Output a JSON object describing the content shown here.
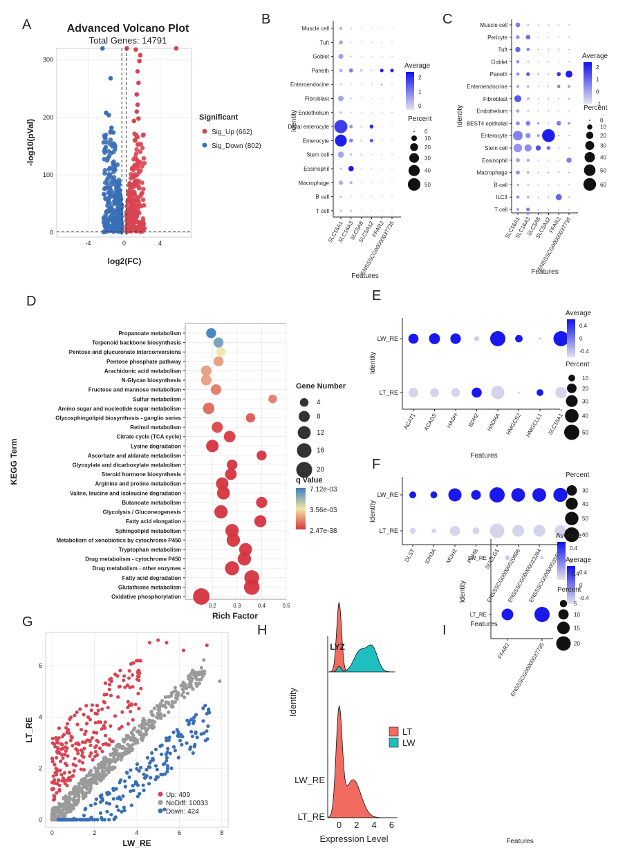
{
  "panel_labels": [
    "A",
    "B",
    "C",
    "D",
    "E",
    "F",
    "G",
    "H",
    "I"
  ],
  "colors": {
    "up": "#d94452",
    "down": "#3a6fb7",
    "nodiff": "#9a9a9a",
    "dot_low": "#d9d9d9",
    "dot_high": "#1010ee",
    "lt": "#f26b61",
    "lw": "#1fbfbf"
  },
  "chart_data": [
    {
      "id": "A",
      "type": "scatter",
      "title": "Advanced Volcano Plot",
      "subtitle": "Total Genes: 14791",
      "xlabel": "log2(FC)",
      "ylabel": "-log10(pVal)",
      "xlim": [
        -7.5,
        7.5
      ],
      "ylim": [
        -8,
        320
      ],
      "xticks": [
        -4,
        0,
        4
      ],
      "yticks": [
        0,
        100,
        200,
        300
      ],
      "threshold_x": [
        -0.25,
        0.25
      ],
      "threshold_y": 1.3,
      "legend_title": "Significant",
      "series": [
        {
          "name": "Sig_Up (662)",
          "color": "#d94452",
          "count": 662
        },
        {
          "name": "Sig_Down (802)",
          "color": "#3a6fb7",
          "count": 802
        }
      ],
      "outliers": [
        [
          -2.4,
          320
        ],
        [
          0.3,
          320
        ],
        [
          1.3,
          318
        ],
        [
          1.8,
          308
        ],
        [
          1.7,
          298
        ],
        [
          1.5,
          280
        ],
        [
          1.6,
          260
        ],
        [
          1.4,
          240
        ],
        [
          1.5,
          222
        ],
        [
          1.4,
          210
        ],
        [
          1.6,
          198
        ],
        [
          -1.5,
          268
        ],
        [
          -2.0,
          208
        ],
        [
          -1.7,
          204
        ],
        [
          -1.4,
          182
        ],
        [
          -1.2,
          174
        ],
        [
          -1.0,
          150
        ],
        [
          1.1,
          194
        ],
        [
          5.8,
          320
        ]
      ]
    },
    {
      "id": "B",
      "type": "dotplot",
      "xlabel": "Features",
      "ylabel": "Identity",
      "features": [
        "SLC16A1",
        "SLC16A3",
        "SLC5A8",
        "SLC5A12",
        "FFAR2",
        "ENSSSCG00000037735"
      ],
      "identities": [
        "Muscle cell",
        "Tuft",
        "Goblet",
        "Paneth",
        "Enteroendocine",
        "Fibroblast",
        "Endothelium",
        "Distal enterocyte",
        "Enterocyte",
        "Stem cell",
        "Eosinophil",
        "Macrophage",
        "B cell",
        "T cell"
      ],
      "percent": [
        [
          3,
          1,
          0,
          0,
          0,
          0
        ],
        [
          5,
          0,
          0,
          0,
          0,
          0
        ],
        [
          8,
          1,
          0,
          0,
          0,
          0
        ],
        [
          4,
          5,
          2,
          1,
          4,
          4
        ],
        [
          1,
          0,
          0,
          0,
          1,
          0
        ],
        [
          10,
          1,
          0,
          0,
          0,
          0
        ],
        [
          2,
          0,
          0,
          0,
          0,
          0
        ],
        [
          55,
          4,
          1,
          5,
          0,
          0
        ],
        [
          45,
          5,
          1,
          4,
          0,
          0
        ],
        [
          12,
          2,
          1,
          0,
          0,
          0
        ],
        [
          2,
          9,
          0,
          0,
          0,
          0
        ],
        [
          6,
          3,
          0,
          0,
          0,
          0
        ],
        [
          2,
          0,
          0,
          0,
          0,
          0
        ],
        [
          2,
          1,
          0,
          0,
          0,
          0
        ]
      ],
      "average": [
        [
          0.3,
          0,
          0,
          0,
          0,
          0
        ],
        [
          0.4,
          0,
          0,
          0,
          0,
          0
        ],
        [
          0.5,
          0,
          0,
          0,
          0,
          0
        ],
        [
          0.3,
          1.0,
          0,
          0,
          2.2,
          2.2
        ],
        [
          0,
          0,
          0,
          0,
          0.5,
          0
        ],
        [
          0.4,
          0,
          0,
          0,
          0,
          0
        ],
        [
          0,
          0,
          0,
          0,
          0,
          0
        ],
        [
          1.8,
          0.6,
          0,
          2.0,
          0,
          0
        ],
        [
          2.2,
          0.8,
          0,
          1.5,
          0,
          0
        ],
        [
          0.4,
          0,
          0,
          0,
          0,
          0
        ],
        [
          0,
          2.3,
          0,
          0,
          0,
          0
        ],
        [
          0.3,
          0.2,
          0,
          0,
          0,
          0
        ],
        [
          0,
          0,
          0,
          0,
          0,
          0
        ],
        [
          0,
          0.2,
          0,
          0,
          0,
          0
        ]
      ],
      "avg_range": [
        -0.3,
        2.4
      ],
      "avg_ticks": [
        2,
        1,
        0
      ],
      "avg_legend": "Average",
      "pct_legend": "Percent",
      "pct_ticks": [
        0,
        10,
        20,
        30,
        40,
        50
      ],
      "pct_max": 55
    },
    {
      "id": "C",
      "type": "dotplot",
      "xlabel": "Features",
      "ylabel": "Identity",
      "features": [
        "SLC16A1",
        "SLC16A3",
        "SLC5A8",
        "SLC5A12",
        "FFAR2",
        "ENSSSCG00000037735"
      ],
      "identities": [
        "Muscle cell",
        "Pericyte",
        "Tuft",
        "Goblet",
        "Paneth",
        "Enteroendocrine",
        "Fibroblast",
        "Endothelium",
        "BEST4 epithelial",
        "Enterocyte",
        "Stem cell",
        "Eosinophil",
        "Macrophage",
        "B cell",
        "ILC3",
        "T cell"
      ],
      "percent": [
        [
          8,
          1,
          0,
          0,
          0,
          0
        ],
        [
          5,
          8,
          0,
          0,
          0,
          0
        ],
        [
          10,
          4,
          0,
          0,
          0,
          0
        ],
        [
          4,
          1,
          0,
          0,
          0,
          0
        ],
        [
          4,
          5,
          1,
          0,
          6,
          18
        ],
        [
          3,
          2,
          0,
          0,
          4,
          3
        ],
        [
          18,
          2,
          0,
          0,
          0,
          1
        ],
        [
          4,
          1,
          0,
          0,
          0,
          0
        ],
        [
          6,
          8,
          2,
          0,
          8,
          3
        ],
        [
          35,
          10,
          3,
          62,
          1,
          0
        ],
        [
          28,
          20,
          10,
          6,
          0,
          0
        ],
        [
          6,
          3,
          0,
          0,
          0,
          10
        ],
        [
          6,
          2,
          0,
          0,
          0,
          0
        ],
        [
          2,
          1,
          0,
          0,
          0,
          0
        ],
        [
          4,
          2,
          0,
          0,
          14,
          0
        ],
        [
          3,
          5,
          0,
          0,
          0,
          0
        ]
      ],
      "average": [
        [
          0.6,
          0,
          0,
          0,
          0,
          0
        ],
        [
          0.3,
          0.8,
          0,
          0,
          0,
          0
        ],
        [
          1.0,
          0.5,
          0,
          0,
          0,
          0
        ],
        [
          0.3,
          0,
          0,
          0,
          0,
          0
        ],
        [
          0.3,
          1.3,
          0,
          0,
          1.8,
          2.2
        ],
        [
          0,
          0,
          0,
          0,
          0.5,
          0
        ],
        [
          1.2,
          0,
          0,
          0,
          0,
          0
        ],
        [
          0,
          0,
          0,
          0,
          0,
          0
        ],
        [
          0.3,
          0.6,
          0,
          0,
          0.6,
          0
        ],
        [
          0.5,
          0.3,
          0,
          2.2,
          0,
          0
        ],
        [
          0.2,
          0.3,
          1.4,
          0.7,
          0,
          0
        ],
        [
          0,
          0,
          0,
          0,
          0,
          0.6
        ],
        [
          0.3,
          0,
          0,
          0,
          0,
          0
        ],
        [
          0,
          0,
          0,
          0,
          0,
          0
        ],
        [
          0.2,
          0,
          0,
          0,
          1.0,
          0
        ],
        [
          0,
          0.6,
          0,
          0,
          0,
          0
        ]
      ],
      "avg_range": [
        -1,
        2.4
      ],
      "avg_ticks": [
        2,
        1,
        0,
        -1
      ],
      "avg_legend": "Average",
      "pct_legend": "Percent",
      "pct_ticks": [
        0,
        10,
        20,
        30,
        40,
        50,
        60
      ],
      "pct_max": 62
    },
    {
      "id": "D",
      "type": "scatter",
      "xlabel": "Rich Factor",
      "ylabel": "KEGG Term",
      "xlim": [
        0.09,
        0.5
      ],
      "xticks": [
        0.2,
        0.3,
        0.4,
        0.5
      ],
      "size_legend": "Gene Number",
      "size_ticks": [
        4,
        8,
        12,
        16,
        20
      ],
      "color_legend": "q Value",
      "color_labels": [
        "7.12e-03",
        "3.56e-03",
        "2.47e-38"
      ],
      "terms": [
        "Propanoate metabolism",
        "Terpenoid backbone biosynthesis",
        "Pentose and glucuronate interconversions",
        "Pentose phosphate pathway",
        "Arachidonic acid metabolism",
        "N-Glycan biosynthesis",
        "Fructose and mannose metabolism",
        "Sulfur metabolism",
        "Amino sugar and nucleotide sugar metabolism",
        "Glycosphingolipid biosynthesis - ganglio series",
        "Retinol metabolism",
        "Citrate cycle (TCA cycle)",
        "Lysine degradation",
        "Ascorbate and aldarate metabolism",
        "Glyoxylate and dicarboxylate metabolism",
        "Steroid hormone biosynthesis",
        "Arginine and proline metabolism",
        "Valine, leucine and isoleucine degradation",
        "Butanoate metabolism",
        "Glycolysis / Gluconeogenesis",
        "Fatty acid elongation",
        "Sphingolipid metabolism",
        "Metabolism of xenobiotics by cytochrome P450",
        "Tryptophan metabolism",
        "Drug metabolism - cytochrome P450",
        "Drug metabolism - other enzymes",
        "Fatty acid degradation",
        "Glutathione metabolism",
        "Oxidative phosphorylation"
      ],
      "rich_factor": [
        0.195,
        0.225,
        0.235,
        0.225,
        0.175,
        0.175,
        0.215,
        0.445,
        0.185,
        0.355,
        0.22,
        0.27,
        0.2,
        0.4,
        0.28,
        0.275,
        0.24,
        0.245,
        0.4,
        0.235,
        0.395,
        0.28,
        0.285,
        0.335,
        0.33,
        0.28,
        0.36,
        0.36,
        0.155
      ],
      "gene_number": [
        6,
        6,
        5,
        6,
        7,
        7,
        7,
        4,
        9,
        5,
        8,
        9,
        11,
        6,
        7,
        9,
        11,
        12,
        8,
        13,
        10,
        13,
        13,
        12,
        13,
        15,
        17,
        19,
        22
      ],
      "q_value_position": [
        1,
        0.85,
        0.5,
        0.3,
        0.3,
        0.3,
        0.2,
        0.2,
        0.15,
        0.1,
        0.05,
        0.02,
        0,
        0,
        0,
        0,
        0,
        0,
        0,
        0,
        0,
        0,
        0,
        0,
        0,
        0,
        0,
        0,
        0
      ]
    },
    {
      "id": "E",
      "type": "dotplot",
      "xlabel": "Features",
      "ylabel": "Identity",
      "features": [
        "ACAT1",
        "ACADS",
        "HADH",
        "BDH2",
        "HADHA",
        "HMGCS2",
        "HMGCLL1",
        "SLC16A1"
      ],
      "identities": [
        "LW_RE",
        "LT_RE"
      ],
      "percent": [
        [
          22,
          26,
          24,
          5,
          50,
          12,
          0,
          50
        ],
        [
          20,
          17,
          17,
          22,
          38,
          1,
          10,
          28
        ]
      ],
      "average": [
        [
          0.55,
          0.55,
          0.55,
          -0.5,
          0.55,
          0.55,
          0,
          0.55
        ],
        [
          -0.55,
          -0.55,
          -0.55,
          0.55,
          -0.55,
          -0.55,
          0.55,
          -0.55
        ]
      ],
      "avg_range": [
        -0.6,
        0.6
      ],
      "avg_ticks": [
        0.4,
        0.0,
        -0.4
      ],
      "avg_legend": "Average",
      "pct_legend": "Percent",
      "pct_ticks": [
        10,
        20,
        30,
        40,
        50
      ],
      "pct_max": 50
    },
    {
      "id": "F",
      "type": "dotplot",
      "xlabel": "Features",
      "ylabel": "Identity",
      "features": [
        "DLST",
        "IDH3A",
        "MDH2",
        "PDHB",
        "SUCLG1",
        "ENSSSCG00000020686",
        "ENSSSCG00000023264",
        "ENSSSCG00000035686"
      ],
      "identities": [
        "LW_RE",
        "LT_RE"
      ],
      "percent": [
        [
          13,
          13,
          48,
          26,
          64,
          52,
          52,
          54
        ],
        [
          10,
          6,
          28,
          13,
          58,
          38,
          38,
          36
        ]
      ],
      "average": [
        [
          0.55,
          0.55,
          0.55,
          0.55,
          0.55,
          0.55,
          0.55,
          0.55
        ],
        [
          -0.55,
          -0.55,
          -0.55,
          -0.55,
          -0.55,
          -0.55,
          -0.55,
          -0.55
        ]
      ],
      "avg_range": [
        -0.6,
        0.6
      ],
      "avg_ticks": [
        0.4,
        0.0,
        -0.4
      ],
      "avg_legend": "Average",
      "pct_legend": "Percent",
      "pct_ticks": [
        30,
        40,
        50,
        60
      ],
      "pct_max": 64
    },
    {
      "id": "G",
      "type": "scatter",
      "xlabel": "LW_RE",
      "ylabel": "LT_RE",
      "xlim": [
        -0.3,
        8.3
      ],
      "ylim": [
        -0.3,
        7.3
      ],
      "xticks": [
        0,
        2,
        4,
        6,
        8
      ],
      "yticks": [
        0,
        2,
        4,
        6
      ],
      "series": [
        {
          "name": "Up: 409",
          "color": "#d94452",
          "count": 409
        },
        {
          "name": "NoDiff: 10033",
          "color": "#9a9a9a",
          "count": 10033
        },
        {
          "name": "Down: 424",
          "color": "#3a6fb7",
          "count": 424
        }
      ],
      "outliers": [
        [
          4.6,
          6.9
        ],
        [
          5.0,
          7.0
        ],
        [
          5.4,
          6.9
        ],
        [
          6.2,
          6.6
        ],
        [
          7.3,
          6.8
        ],
        [
          7.9,
          5.4
        ],
        [
          4.1,
          5.8
        ],
        [
          3.4,
          5.6
        ],
        [
          2.8,
          5.4
        ],
        [
          5.3,
          0.4
        ],
        [
          3.0,
          0.1
        ]
      ]
    },
    {
      "id": "H",
      "type": "area",
      "title": "LYZ",
      "xlabel": "Expression Level",
      "ylabel": "Identity",
      "xlim": [
        -1.3,
        6.6
      ],
      "xticks": [
        0,
        2,
        4,
        6
      ],
      "identities": [
        "LW_RE",
        "LT_RE"
      ],
      "series": [
        {
          "name": "LT",
          "color": "#f26b61"
        },
        {
          "name": "LW",
          "color": "#1fbfbf"
        }
      ]
    },
    {
      "id": "I",
      "type": "dotplot",
      "xlabel": "Features",
      "ylabel": "Identity",
      "features": [
        "FFAR2",
        "ENSSSCG00000037735"
      ],
      "identities": [
        "LW_RE",
        "LT_RE"
      ],
      "percent": [
        [
          2,
          1
        ],
        [
          13,
          22
        ]
      ],
      "average": [
        [
          -0.5,
          -0.5
        ],
        [
          0.55,
          0.55
        ]
      ],
      "avg_range": [
        -0.6,
        0.6
      ],
      "avg_ticks": [
        0.4,
        0.0,
        -0.4
      ],
      "avg_legend": "Average",
      "pct_legend": "Percent",
      "pct_ticks": [
        5,
        10,
        15,
        20
      ],
      "pct_max": 22
    }
  ]
}
